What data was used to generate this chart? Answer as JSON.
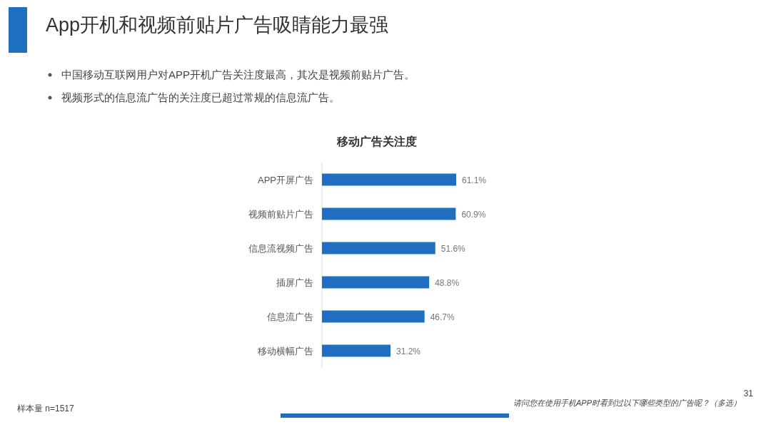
{
  "chart_data": {
    "type": "bar",
    "orientation": "horizontal",
    "title": "App开机和视频前贴片广告吸睛能力最强",
    "subtitle": "移动广告关注度",
    "categories": [
      "APP开屏广告",
      "视频前贴片广告",
      "信息流视频广告",
      "插屏广告",
      "信息流广告",
      "移动横幅广告"
    ],
    "values": [
      61.1,
      60.9,
      51.6,
      48.8,
      46.7,
      31.2
    ],
    "value_labels": [
      "61.1%",
      "60.9%",
      "51.6%",
      "48.8%",
      "46.7%",
      "31.2%"
    ],
    "color": "#1f6fc0",
    "annotations": [
      "中国移动互联网用户对APP开机广告关注度最高，其次是视频前贴片广告。",
      "视频形式的信息流广告的关注度已超过常规的信息流广告。",
      "样本量 n=1517",
      "请问您在使用手机APP时看到过以下哪些类型的广告呢？（多选）",
      "31"
    ]
  }
}
